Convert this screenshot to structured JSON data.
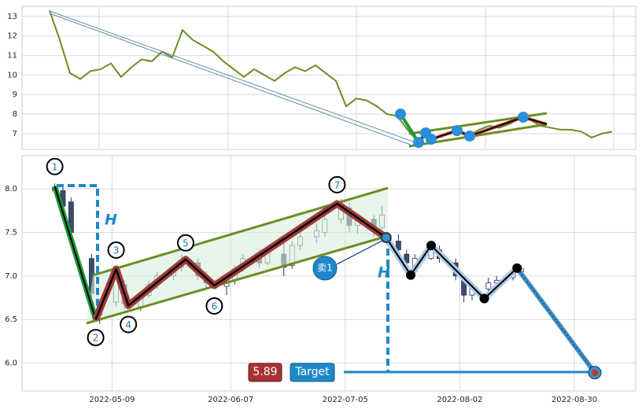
{
  "chart_data": [
    {
      "type": "line",
      "color": "#6b8e23",
      "values": [
        13.3,
        11.8,
        10.1,
        9.8,
        10.2,
        10.3,
        10.6,
        9.9,
        10.4,
        10.8,
        10.7,
        11.2,
        10.9,
        12.3,
        11.8,
        11.5,
        11.2,
        10.7,
        10.3,
        9.9,
        10.3,
        10.0,
        9.7,
        10.1,
        10.4,
        10.2,
        10.5,
        10.1,
        9.7,
        8.4,
        8.8,
        8.7,
        8.4,
        8.0,
        7.9,
        7.2,
        6.6,
        6.9,
        6.8,
        7.0,
        7.2,
        6.9,
        7.2,
        7.4,
        7.3,
        7.5,
        7.8,
        7.7,
        7.4,
        7.3,
        7.2,
        7.2,
        7.1,
        6.8,
        7.0,
        7.1
      ],
      "xlim": [
        -2.69,
        57.31
      ],
      "ylim": [
        6.19,
        13.52
      ],
      "yticks": [
        7,
        8,
        9,
        10,
        11,
        12,
        13
      ],
      "grid": true
    },
    {
      "type": "candlestick",
      "up_color": "#ffffff",
      "down_color": "#3b4a6b",
      "x": [
        "2022-04-25",
        "2022-04-27",
        "2022-04-29",
        "2022-05-04",
        "2022-05-06",
        "2022-05-10",
        "2022-05-12",
        "2022-05-16",
        "2022-05-18",
        "2022-05-20",
        "2022-05-24",
        "2022-05-26",
        "2022-05-30",
        "2022-06-01",
        "2022-06-06",
        "2022-06-08",
        "2022-06-10",
        "2022-06-14",
        "2022-06-16",
        "2022-06-20",
        "2022-06-22",
        "2022-06-24",
        "2022-06-28",
        "2022-06-30",
        "2022-07-04",
        "2022-07-06",
        "2022-07-08",
        "2022-07-12",
        "2022-07-14",
        "2022-07-18",
        "2022-07-20",
        "2022-07-22",
        "2022-07-26",
        "2022-07-28",
        "2022-08-01",
        "2022-08-03",
        "2022-08-05",
        "2022-08-09",
        "2022-08-11",
        "2022-08-15",
        "2022-08-17"
      ],
      "open": [
        8.02,
        7.98,
        7.85,
        7.2,
        6.55,
        6.7,
        6.9,
        6.65,
        6.78,
        6.9,
        7.0,
        7.1,
        7.15,
        7.0,
        6.88,
        6.95,
        7.1,
        7.2,
        7.15,
        7.25,
        7.12,
        7.35,
        7.45,
        7.5,
        7.65,
        7.78,
        7.58,
        7.65,
        7.55,
        7.4,
        7.25,
        7.05,
        7.2,
        7.3,
        7.15,
        6.95,
        6.78,
        6.85,
        6.92,
        6.98,
        7.05
      ],
      "high": [
        8.06,
        8.02,
        7.9,
        7.25,
        6.7,
        7.05,
        6.95,
        6.8,
        6.95,
        7.05,
        7.12,
        7.25,
        7.2,
        7.05,
        7.0,
        7.12,
        7.25,
        7.3,
        7.32,
        7.38,
        7.4,
        7.5,
        7.6,
        7.72,
        7.88,
        7.85,
        7.72,
        7.7,
        7.8,
        7.48,
        7.3,
        7.25,
        7.38,
        7.35,
        7.2,
        7.0,
        6.9,
        6.98,
        7.0,
        7.1,
        7.12
      ],
      "low": [
        7.95,
        7.75,
        7.4,
        6.7,
        6.45,
        6.65,
        6.62,
        6.6,
        6.75,
        6.85,
        6.95,
        7.05,
        6.95,
        6.85,
        6.78,
        6.9,
        7.05,
        7.1,
        7.12,
        7.0,
        7.08,
        7.3,
        7.38,
        7.45,
        7.6,
        7.5,
        7.48,
        7.45,
        7.5,
        7.25,
        7.08,
        7.0,
        7.18,
        7.15,
        6.95,
        6.7,
        6.72,
        6.8,
        6.88,
        6.95,
        7.0
      ],
      "close": [
        7.98,
        7.8,
        7.5,
        6.8,
        6.65,
        7.0,
        6.68,
        6.75,
        6.9,
        7.0,
        7.08,
        7.18,
        7.0,
        6.92,
        6.95,
        7.08,
        7.2,
        7.15,
        7.28,
        7.1,
        7.35,
        7.45,
        7.52,
        7.65,
        7.8,
        7.58,
        7.68,
        7.52,
        7.7,
        7.3,
        7.15,
        7.2,
        7.32,
        7.2,
        7.0,
        6.78,
        6.85,
        6.92,
        6.95,
        7.05,
        7.08
      ],
      "pattern": {
        "x": [
          "2022-04-25",
          "2022-05-05",
          "2022-05-10",
          "2022-05-13",
          "2022-05-27",
          "2022-06-03",
          "2022-07-03",
          "2022-07-15"
        ],
        "y": [
          8.03,
          6.5,
          7.08,
          6.66,
          7.19,
          6.89,
          7.83,
          7.44
        ],
        "labels": [
          "1",
          "2",
          "3",
          "4",
          "5",
          "6",
          "7",
          null
        ]
      },
      "projection": {
        "x": [
          "2022-07-21",
          "2022-07-26",
          "2022-08-08",
          "2022-08-16"
        ],
        "y": [
          7.01,
          7.35,
          6.74,
          7.09
        ]
      },
      "target": {
        "x": "2022-09-04",
        "value": 5.89,
        "label": "Target"
      },
      "height_label": "H",
      "sell_label": "卖1",
      "xlim": [
        "2022-04-17",
        "2022-09-14"
      ],
      "xticks": [
        "2022-05-09",
        "2022-06-07",
        "2022-07-05",
        "2022-08-02",
        "2022-08-30"
      ],
      "ylim": [
        5.68,
        8.38
      ],
      "yticks": [
        {
          "value": 6,
          "label": "6.0"
        },
        {
          "value": 6.5,
          "label": "6.5"
        },
        {
          "value": 7,
          "label": "7.0"
        },
        {
          "value": 7.5,
          "label": "7.5"
        },
        {
          "value": 8,
          "label": "8.0"
        }
      ],
      "grid": true
    }
  ]
}
